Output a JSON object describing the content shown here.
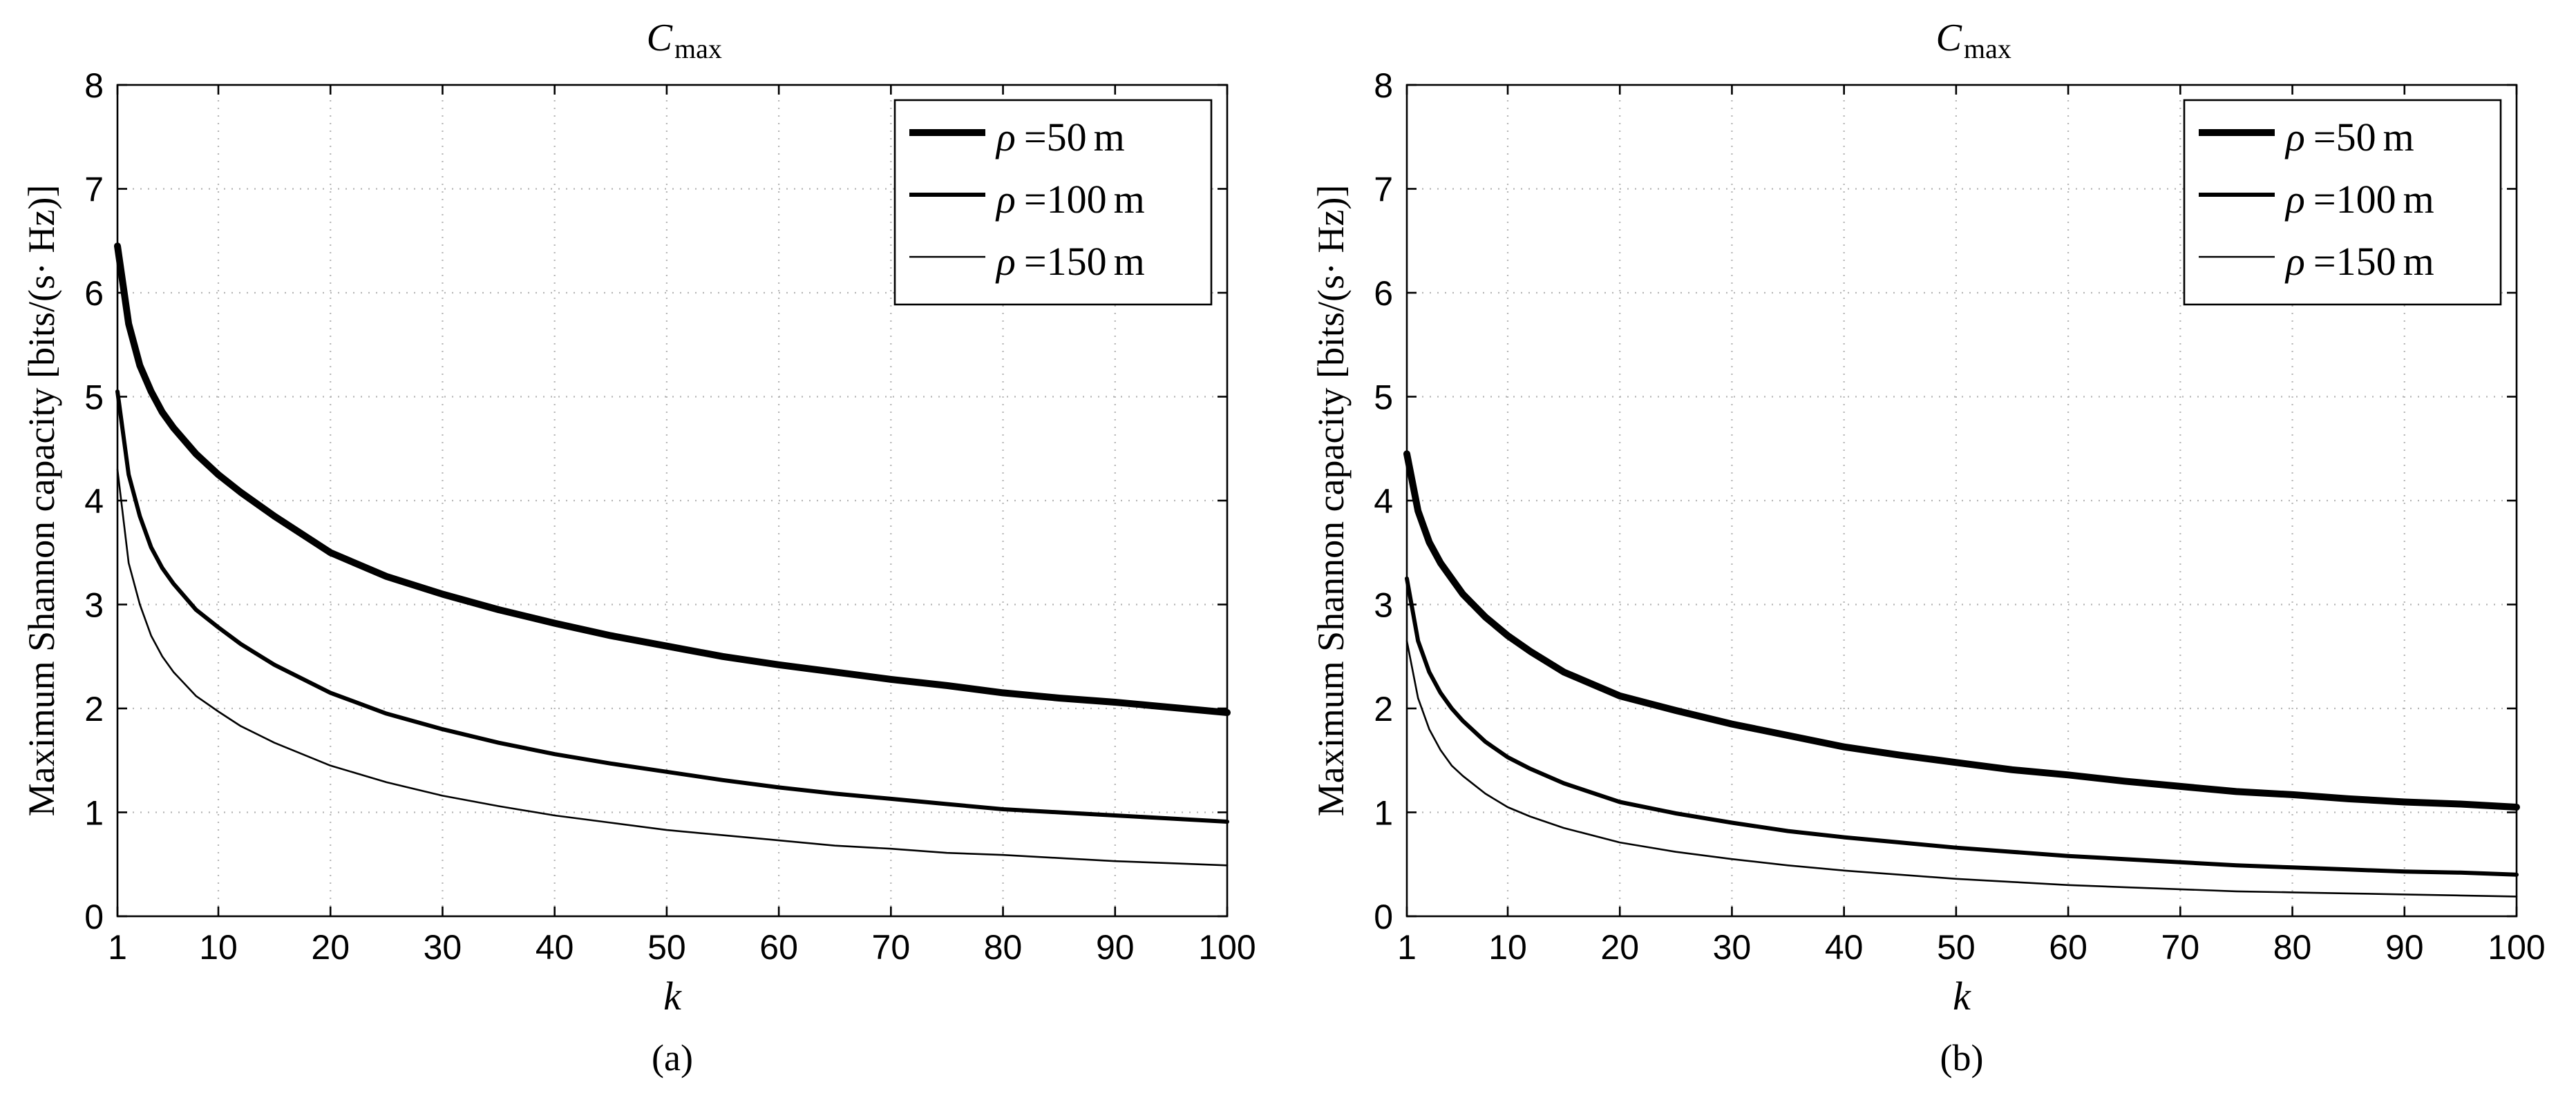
{
  "chart_data": [
    {
      "type": "line",
      "panel_label": "(a)",
      "title": "C",
      "title_subscript": "max",
      "xlabel": "k",
      "ylabel": "Maximum Shannon capacity [bits/(s· Hz)]",
      "xlim": [
        1,
        100
      ],
      "ylim": [
        0,
        8
      ],
      "xticks": [
        1,
        10,
        20,
        30,
        40,
        50,
        60,
        70,
        80,
        90,
        100
      ],
      "yticks": [
        0,
        1,
        2,
        3,
        4,
        5,
        6,
        7,
        8
      ],
      "grid": true,
      "legend_position": "top-right",
      "x": [
        1,
        2,
        3,
        4,
        5,
        6,
        8,
        10,
        12,
        15,
        20,
        25,
        30,
        35,
        40,
        45,
        50,
        55,
        60,
        65,
        70,
        75,
        80,
        85,
        90,
        95,
        100
      ],
      "series": [
        {
          "name": "ρ = 50 m",
          "rho": "ρ",
          "eq": "=",
          "value": "50",
          "unit": "m",
          "width": 10,
          "values": [
            6.45,
            5.7,
            5.3,
            5.05,
            4.85,
            4.7,
            4.45,
            4.25,
            4.08,
            3.85,
            3.5,
            3.27,
            3.1,
            2.95,
            2.82,
            2.7,
            2.6,
            2.5,
            2.42,
            2.35,
            2.28,
            2.22,
            2.15,
            2.1,
            2.06,
            2.01,
            1.96
          ]
        },
        {
          "name": "ρ = 100 m",
          "rho": "ρ",
          "eq": "=",
          "value": "100",
          "unit": "m",
          "width": 6,
          "values": [
            5.05,
            4.25,
            3.85,
            3.55,
            3.35,
            3.2,
            2.95,
            2.78,
            2.62,
            2.42,
            2.15,
            1.95,
            1.8,
            1.67,
            1.56,
            1.47,
            1.39,
            1.31,
            1.24,
            1.18,
            1.13,
            1.08,
            1.03,
            1.0,
            0.97,
            0.94,
            0.91
          ]
        },
        {
          "name": "ρ = 150 m",
          "rho": "ρ",
          "eq": "=",
          "value": "150",
          "unit": "m",
          "width": 2.6,
          "values": [
            4.3,
            3.4,
            3.0,
            2.7,
            2.5,
            2.35,
            2.12,
            1.97,
            1.83,
            1.67,
            1.45,
            1.29,
            1.16,
            1.06,
            0.97,
            0.9,
            0.83,
            0.78,
            0.73,
            0.68,
            0.65,
            0.61,
            0.59,
            0.56,
            0.53,
            0.51,
            0.49
          ]
        }
      ]
    },
    {
      "type": "line",
      "panel_label": "(b)",
      "title": "C",
      "title_subscript": "max",
      "xlabel": "k",
      "ylabel": "Maximum Shannon capacity [bits/(s· Hz)]",
      "xlim": [
        1,
        100
      ],
      "ylim": [
        0,
        8
      ],
      "xticks": [
        1,
        10,
        20,
        30,
        40,
        50,
        60,
        70,
        80,
        90,
        100
      ],
      "yticks": [
        0,
        1,
        2,
        3,
        4,
        5,
        6,
        7,
        8
      ],
      "grid": true,
      "legend_position": "top-right",
      "x": [
        1,
        2,
        3,
        4,
        5,
        6,
        8,
        10,
        12,
        15,
        20,
        25,
        30,
        35,
        40,
        45,
        50,
        55,
        60,
        65,
        70,
        75,
        80,
        85,
        90,
        95,
        100
      ],
      "series": [
        {
          "name": "ρ = 50 m",
          "rho": "ρ",
          "eq": "=",
          "value": "50",
          "unit": "m",
          "width": 10,
          "values": [
            4.45,
            3.9,
            3.6,
            3.4,
            3.25,
            3.1,
            2.88,
            2.7,
            2.55,
            2.35,
            2.12,
            1.98,
            1.85,
            1.74,
            1.63,
            1.55,
            1.48,
            1.41,
            1.36,
            1.3,
            1.25,
            1.2,
            1.17,
            1.13,
            1.1,
            1.08,
            1.05
          ]
        },
        {
          "name": "ρ = 100 m",
          "rho": "ρ",
          "eq": "=",
          "value": "100",
          "unit": "m",
          "width": 6,
          "values": [
            3.25,
            2.65,
            2.35,
            2.15,
            2.0,
            1.88,
            1.68,
            1.53,
            1.42,
            1.28,
            1.1,
            0.99,
            0.9,
            0.82,
            0.76,
            0.71,
            0.66,
            0.62,
            0.58,
            0.55,
            0.52,
            0.49,
            0.47,
            0.45,
            0.43,
            0.42,
            0.4
          ]
        },
        {
          "name": "ρ = 150 m",
          "rho": "ρ",
          "eq": "=",
          "value": "150",
          "unit": "m",
          "width": 2.6,
          "values": [
            2.65,
            2.1,
            1.8,
            1.6,
            1.45,
            1.35,
            1.18,
            1.05,
            0.96,
            0.85,
            0.71,
            0.62,
            0.55,
            0.49,
            0.44,
            0.4,
            0.36,
            0.33,
            0.3,
            0.28,
            0.26,
            0.24,
            0.23,
            0.22,
            0.21,
            0.2,
            0.19
          ]
        }
      ]
    }
  ]
}
